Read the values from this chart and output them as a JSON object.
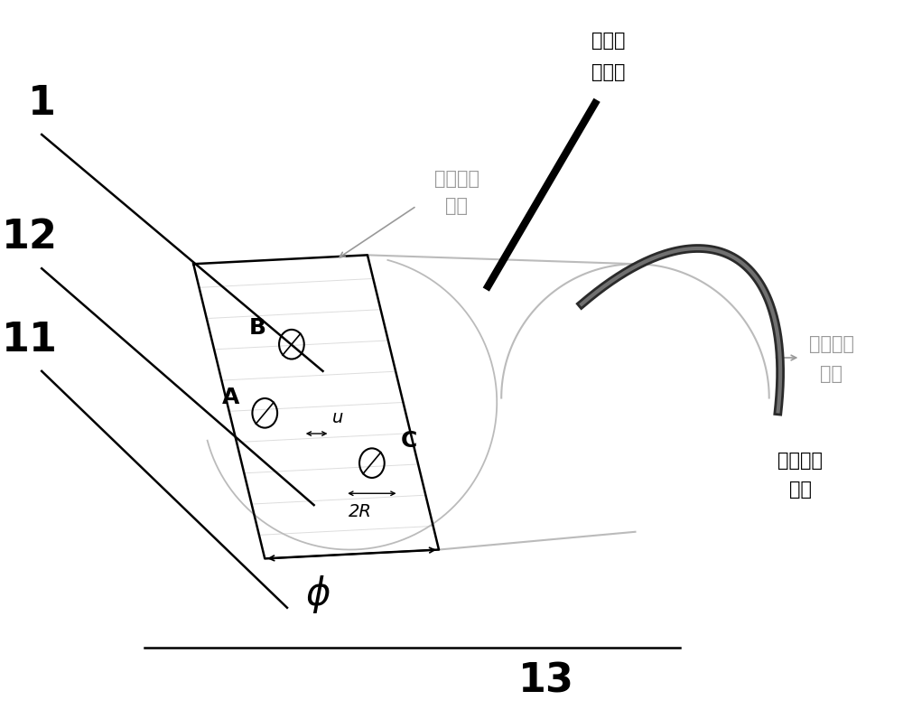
{
  "bg_color": "#ffffff",
  "label_color": "#000000",
  "gray_color": "#999999",
  "light_gray": "#bbbbbb",
  "dark_gray": "#333333",
  "labels": {
    "1": "1",
    "12": "12",
    "11": "11",
    "13": "13",
    "A": "A",
    "B": "B",
    "C": "C",
    "phi": "ϕ",
    "u": "u",
    "2R": "2R",
    "top_label1": "接光源",
    "top_label2": "分光器",
    "left_label1": "发射光纤",
    "left_label2": "线束",
    "right_label1": "接收光纤",
    "right_label2": "线束",
    "bottom_right1": "前置处理",
    "bottom_right2": "电路"
  },
  "fontsize_large": 32,
  "fontsize_medium": 15,
  "fontsize_label": 16,
  "fontsize_dim": 14
}
